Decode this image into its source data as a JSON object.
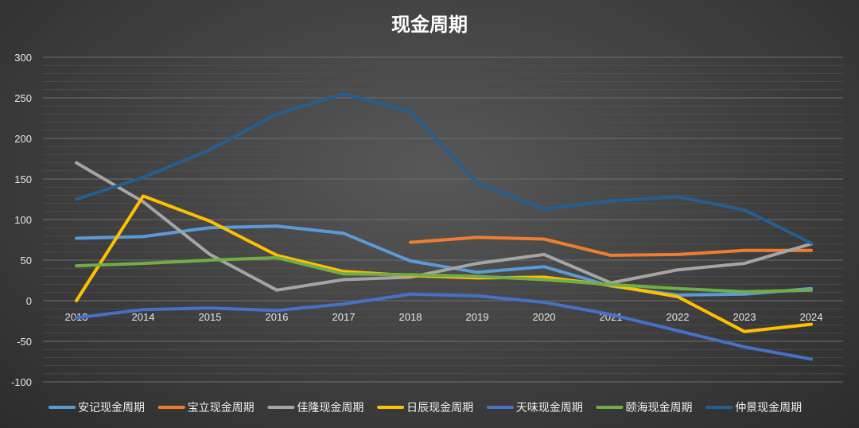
{
  "chart_data": {
    "type": "line",
    "title": "现金周期",
    "xlabel": "",
    "ylabel": "",
    "categories": [
      "2013",
      "2014",
      "2015",
      "2016",
      "2017",
      "2018",
      "2019",
      "2020",
      "2021",
      "2022",
      "2023",
      "2024"
    ],
    "ylim": [
      -100,
      300
    ],
    "yticks": [
      300,
      250,
      200,
      150,
      100,
      50,
      0,
      -50,
      -100
    ],
    "grid": true,
    "legend": "bottom",
    "series": [
      {
        "name": "安记现金周期",
        "color": "#5b9bd5",
        "values": [
          77,
          79,
          90,
          92,
          83,
          49,
          35,
          42,
          18,
          7,
          8,
          15
        ]
      },
      {
        "name": "宝立现金周期",
        "color": "#ed7d31",
        "values": [
          null,
          null,
          null,
          null,
          null,
          72,
          78,
          76,
          56,
          57,
          62,
          62
        ]
      },
      {
        "name": "佳隆现金周期",
        "color": "#a5a5a5",
        "values": [
          170,
          122,
          57,
          13,
          26,
          29,
          46,
          57,
          22,
          38,
          46,
          70
        ]
      },
      {
        "name": "日辰现金周期",
        "color": "#ffc000",
        "values": [
          0,
          129,
          98,
          56,
          36,
          31,
          28,
          29,
          19,
          5,
          -38,
          -29
        ]
      },
      {
        "name": "天味现金周期",
        "color": "#4472c4",
        "values": [
          -21,
          -11,
          -9,
          -12,
          -4,
          8,
          6,
          -2,
          -17,
          -37,
          -57,
          -72
        ]
      },
      {
        "name": "颐海现金周期",
        "color": "#70ad47",
        "values": [
          43,
          46,
          50,
          53,
          33,
          32,
          30,
          26,
          20,
          15,
          11,
          13
        ]
      },
      {
        "name": "仲景现金周期",
        "color": "#255e91",
        "values": [
          125,
          152,
          186,
          230,
          255,
          233,
          145,
          113,
          123,
          128,
          112,
          71
        ]
      }
    ]
  }
}
